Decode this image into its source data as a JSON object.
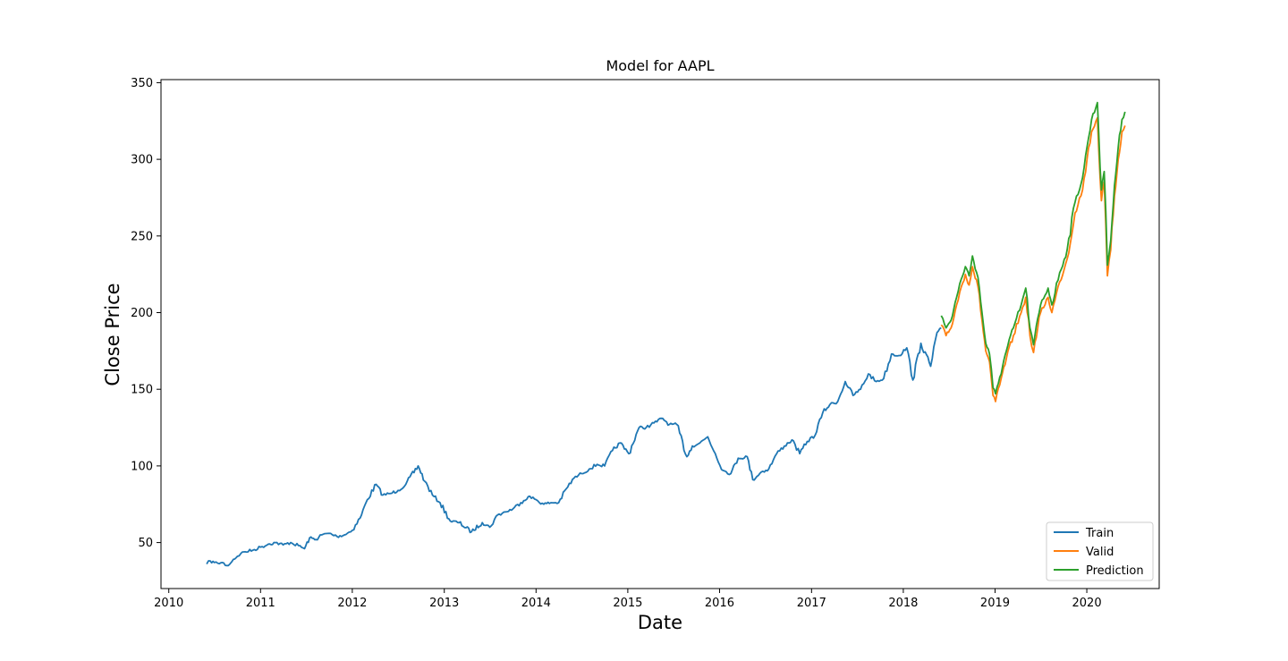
{
  "chart_data": {
    "type": "line",
    "title": "Model for AAPL",
    "xlabel": "Date",
    "ylabel": "Close Price",
    "xlim": [
      "2009-12-01",
      "2020-10-15"
    ],
    "ylim": [
      20,
      352
    ],
    "x_ticks": [
      "2010",
      "2011",
      "2012",
      "2013",
      "2014",
      "2015",
      "2016",
      "2017",
      "2018",
      "2019",
      "2020"
    ],
    "y_ticks": [
      50,
      100,
      150,
      200,
      250,
      300,
      350
    ],
    "grid": false,
    "legend_position": "lower-right",
    "series": [
      {
        "name": "Train",
        "color": "#1f77b4",
        "points": [
          [
            "2010-06-01",
            36
          ],
          [
            "2010-06-15",
            38
          ],
          [
            "2010-07-01",
            37
          ],
          [
            "2010-07-15",
            36.5
          ],
          [
            "2010-08-01",
            37
          ],
          [
            "2010-08-20",
            35
          ],
          [
            "2010-09-01",
            36
          ],
          [
            "2010-09-15",
            39
          ],
          [
            "2010-10-01",
            41
          ],
          [
            "2010-10-15",
            43
          ],
          [
            "2010-11-01",
            44
          ],
          [
            "2010-12-01",
            45
          ],
          [
            "2011-01-01",
            47
          ],
          [
            "2011-02-01",
            49
          ],
          [
            "2011-03-01",
            50
          ],
          [
            "2011-04-01",
            48.5
          ],
          [
            "2011-05-01",
            50
          ],
          [
            "2011-06-01",
            48
          ],
          [
            "2011-06-25",
            46
          ],
          [
            "2011-07-15",
            53
          ],
          [
            "2011-08-10",
            52
          ],
          [
            "2011-09-01",
            55
          ],
          [
            "2011-10-01",
            56
          ],
          [
            "2011-11-01",
            54
          ],
          [
            "2011-12-01",
            55
          ],
          [
            "2012-01-01",
            58
          ],
          [
            "2012-02-01",
            66
          ],
          [
            "2012-03-01",
            78
          ],
          [
            "2012-04-05",
            88
          ],
          [
            "2012-05-01",
            81
          ],
          [
            "2012-06-01",
            82
          ],
          [
            "2012-07-01",
            84
          ],
          [
            "2012-08-01",
            88
          ],
          [
            "2012-09-19",
            100
          ],
          [
            "2012-10-15",
            90
          ],
          [
            "2012-11-15",
            81
          ],
          [
            "2012-12-15",
            76
          ],
          [
            "2013-01-25",
            64
          ],
          [
            "2013-03-01",
            63
          ],
          [
            "2013-04-19",
            57
          ],
          [
            "2013-06-01",
            63
          ],
          [
            "2013-07-01",
            60
          ],
          [
            "2013-08-01",
            68
          ],
          [
            "2013-09-01",
            70
          ],
          [
            "2013-10-01",
            72
          ],
          [
            "2013-11-01",
            76
          ],
          [
            "2013-12-01",
            80
          ],
          [
            "2014-01-01",
            78
          ],
          [
            "2014-02-01",
            75
          ],
          [
            "2014-03-01",
            76
          ],
          [
            "2014-04-01",
            76
          ],
          [
            "2014-05-01",
            85
          ],
          [
            "2014-06-01",
            92
          ],
          [
            "2014-07-01",
            95
          ],
          [
            "2014-08-01",
            98
          ],
          [
            "2014-09-01",
            101
          ],
          [
            "2014-10-01",
            100
          ],
          [
            "2014-11-01",
            110
          ],
          [
            "2014-12-01",
            115
          ],
          [
            "2015-01-05",
            108
          ],
          [
            "2015-02-15",
            125
          ],
          [
            "2015-03-15",
            125
          ],
          [
            "2015-04-15",
            128
          ],
          [
            "2015-05-20",
            131
          ],
          [
            "2015-06-15",
            127
          ],
          [
            "2015-07-15",
            127
          ],
          [
            "2015-08-24",
            106
          ],
          [
            "2015-09-15",
            113
          ],
          [
            "2015-10-15",
            115
          ],
          [
            "2015-11-15",
            119
          ],
          [
            "2015-12-15",
            108
          ],
          [
            "2016-01-15",
            97
          ],
          [
            "2016-02-15",
            95
          ],
          [
            "2016-03-15",
            105
          ],
          [
            "2016-04-20",
            106
          ],
          [
            "2016-05-12",
            91
          ],
          [
            "2016-06-15",
            96
          ],
          [
            "2016-07-15",
            98
          ],
          [
            "2016-08-15",
            108
          ],
          [
            "2016-09-15",
            113
          ],
          [
            "2016-10-15",
            117
          ],
          [
            "2016-11-15",
            108
          ],
          [
            "2016-12-15",
            116
          ],
          [
            "2017-01-15",
            120
          ],
          [
            "2017-02-15",
            135
          ],
          [
            "2017-03-15",
            140
          ],
          [
            "2017-04-15",
            142
          ],
          [
            "2017-05-15",
            155
          ],
          [
            "2017-06-15",
            146
          ],
          [
            "2017-07-15",
            150
          ],
          [
            "2017-08-15",
            160
          ],
          [
            "2017-09-15",
            155
          ],
          [
            "2017-10-15",
            157
          ],
          [
            "2017-11-15",
            173
          ],
          [
            "2017-12-15",
            172
          ],
          [
            "2018-01-15",
            177
          ],
          [
            "2018-02-08",
            156
          ],
          [
            "2018-03-12",
            180
          ],
          [
            "2018-04-20",
            165
          ],
          [
            "2018-05-15",
            187
          ],
          [
            "2018-06-01",
            190
          ]
        ]
      },
      {
        "name": "Valid",
        "color": "#ff7f0e",
        "points": [
          [
            "2018-06-01",
            192
          ],
          [
            "2018-06-20",
            185
          ],
          [
            "2018-07-10",
            190
          ],
          [
            "2018-08-01",
            205
          ],
          [
            "2018-08-20",
            217
          ],
          [
            "2018-09-05",
            225
          ],
          [
            "2018-09-20",
            218
          ],
          [
            "2018-10-03",
            230
          ],
          [
            "2018-10-25",
            217
          ],
          [
            "2018-11-10",
            195
          ],
          [
            "2018-11-25",
            175
          ],
          [
            "2018-12-10",
            168
          ],
          [
            "2018-12-24",
            146
          ],
          [
            "2019-01-03",
            142
          ],
          [
            "2019-01-20",
            153
          ],
          [
            "2019-02-15",
            170
          ],
          [
            "2019-03-15",
            185
          ],
          [
            "2019-04-15",
            200
          ],
          [
            "2019-05-03",
            210
          ],
          [
            "2019-05-20",
            185
          ],
          [
            "2019-06-03",
            174
          ],
          [
            "2019-07-01",
            200
          ],
          [
            "2019-07-31",
            210
          ],
          [
            "2019-08-15",
            200
          ],
          [
            "2019-09-15",
            220
          ],
          [
            "2019-10-15",
            235
          ],
          [
            "2019-11-15",
            265
          ],
          [
            "2019-12-15",
            280
          ],
          [
            "2020-01-02",
            300
          ],
          [
            "2020-01-20",
            318
          ],
          [
            "2020-02-12",
            327
          ],
          [
            "2020-02-28",
            273
          ],
          [
            "2020-03-10",
            285
          ],
          [
            "2020-03-23",
            224
          ],
          [
            "2020-04-05",
            241
          ],
          [
            "2020-04-20",
            276
          ],
          [
            "2020-05-05",
            300
          ],
          [
            "2020-05-20",
            318
          ],
          [
            "2020-06-01",
            322
          ]
        ]
      },
      {
        "name": "Prediction",
        "color": "#2ca02c",
        "points": [
          [
            "2018-06-01",
            198
          ],
          [
            "2018-06-20",
            190
          ],
          [
            "2018-07-10",
            195
          ],
          [
            "2018-08-01",
            210
          ],
          [
            "2018-08-20",
            222
          ],
          [
            "2018-09-05",
            230
          ],
          [
            "2018-09-20",
            224
          ],
          [
            "2018-10-03",
            237
          ],
          [
            "2018-10-25",
            223
          ],
          [
            "2018-11-10",
            200
          ],
          [
            "2018-11-25",
            180
          ],
          [
            "2018-12-10",
            173
          ],
          [
            "2018-12-24",
            151
          ],
          [
            "2019-01-03",
            147
          ],
          [
            "2019-01-20",
            158
          ],
          [
            "2019-02-15",
            175
          ],
          [
            "2019-03-15",
            190
          ],
          [
            "2019-04-15",
            205
          ],
          [
            "2019-05-03",
            216
          ],
          [
            "2019-05-20",
            190
          ],
          [
            "2019-06-03",
            179
          ],
          [
            "2019-07-01",
            205
          ],
          [
            "2019-07-31",
            216
          ],
          [
            "2019-08-15",
            205
          ],
          [
            "2019-09-15",
            226
          ],
          [
            "2019-10-15",
            241
          ],
          [
            "2019-11-15",
            272
          ],
          [
            "2019-12-15",
            288
          ],
          [
            "2020-01-02",
            308
          ],
          [
            "2020-01-20",
            326
          ],
          [
            "2020-02-12",
            337
          ],
          [
            "2020-02-28",
            280
          ],
          [
            "2020-03-10",
            292
          ],
          [
            "2020-03-23",
            231
          ],
          [
            "2020-04-05",
            247
          ],
          [
            "2020-04-20",
            283
          ],
          [
            "2020-05-05",
            308
          ],
          [
            "2020-05-20",
            326
          ],
          [
            "2020-06-01",
            331
          ]
        ]
      }
    ]
  }
}
